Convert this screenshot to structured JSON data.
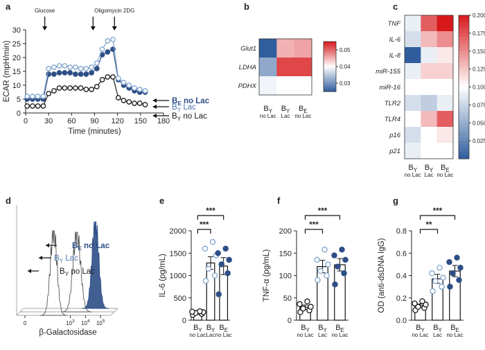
{
  "colors": {
    "navy": "#2e4e86",
    "steel": "#4f76a8",
    "light": "#7fa4cd",
    "black": "#1a1a1a",
    "heat_low": "#2f5d9e",
    "heat_mid": "#ffffff",
    "heat_high": "#d7191c"
  },
  "panel_labels": [
    "a",
    "b",
    "c",
    "d",
    "e",
    "f",
    "g"
  ],
  "chart_data": [
    {
      "id": "a",
      "type": "line",
      "xlabel": "Time (minutes)",
      "ylabel": "ECAR (mpH/min)",
      "xlim": [
        0,
        180
      ],
      "ylim": [
        0,
        30
      ],
      "xticks": [
        0,
        30,
        60,
        90,
        120,
        150,
        180
      ],
      "yticks": [
        0,
        5,
        10,
        15,
        20,
        25,
        30
      ],
      "annotations": [
        {
          "text": "Glucose",
          "x": 25
        },
        {
          "text": "Oligomycin 2DG",
          "x": 116
        }
      ],
      "arrow_times": [
        25,
        88,
        116
      ],
      "x": [
        2,
        9,
        16,
        23,
        30,
        37,
        44,
        51,
        58,
        65,
        72,
        79,
        86,
        93,
        100,
        107,
        114,
        121,
        128,
        135,
        142,
        149,
        156
      ],
      "series": [
        {
          "name": "BE no Lac",
          "label_main": "B",
          "label_sub": "E",
          "label_tail": " no Lac",
          "style": "filled-dark",
          "values": [
            5,
            5,
            5,
            5,
            14,
            14,
            14.5,
            14.5,
            14.5,
            14,
            14,
            14,
            14.5,
            16,
            21,
            22,
            23,
            12,
            10,
            9,
            8,
            7.5,
            7.5
          ]
        },
        {
          "name": "BY Lac",
          "label_main": "B",
          "label_sub": "Y",
          "label_tail": " Lac",
          "style": "open-light",
          "values": [
            6,
            6,
            6,
            6,
            16,
            16.5,
            17,
            17,
            16.5,
            16.5,
            16,
            16,
            16.5,
            18,
            23,
            26,
            26.5,
            12.5,
            11,
            10,
            9,
            8.5,
            8
          ]
        },
        {
          "name": "BY no Lac",
          "label_main": "B",
          "label_sub": "Y",
          "label_tail": " no Lac",
          "style": "open-black",
          "values": [
            2.5,
            2.5,
            2.5,
            2.5,
            7,
            8,
            9,
            9,
            9,
            9,
            9,
            8.5,
            8.5,
            9.5,
            12,
            13,
            13,
            5.5,
            4.5,
            4,
            3.5,
            3.5,
            3
          ]
        }
      ]
    },
    {
      "id": "b",
      "type": "heatmap",
      "rows": [
        "Glut1",
        "LDHA",
        "PDHX"
      ],
      "cols": [
        {
          "main": "B",
          "sub": "Y",
          "tail": "no Lac"
        },
        {
          "main": "B",
          "sub": "Y",
          "tail": "Lac"
        },
        {
          "main": "B",
          "sub": "E",
          "tail": "no Lac"
        }
      ],
      "values": [
        [
          0.025,
          0.045,
          0.046
        ],
        [
          0.032,
          0.052,
          0.052
        ],
        [
          0.039,
          0.04,
          0.04
        ]
      ],
      "vmin": 0.025,
      "vmax": 0.055,
      "colorbar_ticks": [
        0.03,
        0.04,
        0.05
      ],
      "colorbar_labels": [
        "0.03",
        "0.04",
        "0.05"
      ]
    },
    {
      "id": "c",
      "type": "heatmap",
      "rows": [
        "TNF",
        "IL-6",
        "IL-8",
        "miR-155",
        "miR-16",
        "TLR2",
        "TLR4",
        "p16",
        "p21"
      ],
      "cols": [
        {
          "main": "B",
          "sub": "Y",
          "tail": "no Lac"
        },
        {
          "main": "B",
          "sub": "Y",
          "tail": "Lac"
        },
        {
          "main": "B",
          "sub": "E",
          "tail": "no Lac"
        }
      ],
      "values": [
        [
          0.09,
          0.17,
          0.2
        ],
        [
          0.08,
          0.13,
          0.15
        ],
        [
          0.0,
          0.09,
          0.11
        ],
        [
          0.09,
          0.12,
          0.12
        ],
        [
          0.1,
          0.1,
          0.1
        ],
        [
          0.08,
          0.07,
          0.09
        ],
        [
          0.1,
          0.13,
          0.17
        ],
        [
          0.08,
          0.1,
          0.11
        ],
        [
          0.09,
          0.1,
          0.1
        ]
      ],
      "vmin": 0.0,
      "vmax": 0.2,
      "colorbar_ticks": [
        0.025,
        0.05,
        0.075,
        0.1,
        0.125,
        0.15,
        0.175,
        0.2
      ],
      "colorbar_labels": [
        "0.025",
        "0.050",
        "0.075",
        "0.100",
        "0.125",
        "0.150",
        "0.175",
        "0.200"
      ]
    },
    {
      "id": "d",
      "type": "area",
      "xlabel": "β-Galactosidase",
      "ticks": [
        {
          "main": "0",
          "sup": ""
        },
        {
          "main": "10",
          "sup": "3"
        },
        {
          "main": "10",
          "sup": "4"
        },
        {
          "main": "10",
          "sup": "5"
        }
      ],
      "tick_positions": [
        0,
        3,
        4,
        5
      ],
      "histograms": [
        {
          "name": "BE no Lac",
          "label_main": "B",
          "label_sub": "E",
          "label_tail": " no Lac",
          "peak": 4.2,
          "width": 0.22,
          "style": "filled"
        },
        {
          "name": "BY Lac",
          "label_main": "B",
          "label_sub": "Y",
          "label_tail": " Lac",
          "peak": 3.2,
          "width": 0.25,
          "style": "outline"
        },
        {
          "name": "BY no Lac",
          "label_main": "B",
          "label_sub": "Y",
          "label_tail": " no Lac",
          "peak": 1.9,
          "width": 0.22,
          "style": "outline"
        }
      ]
    },
    {
      "id": "e",
      "type": "bar",
      "ylabel": "IL-6 (pg/mL)",
      "ylim": [
        0,
        2000
      ],
      "yticks": [
        0,
        500,
        1000,
        1500,
        2000
      ],
      "categories": [
        {
          "main": "B",
          "sub": "Y",
          "tail": "no Lac"
        },
        {
          "main": "B",
          "sub": "Y",
          "tail": "Lac"
        },
        {
          "main": "B",
          "sub": "E",
          "tail": "no Lac"
        }
      ],
      "values": [
        160,
        1280,
        1210
      ],
      "errors": [
        30,
        140,
        190
      ],
      "points": [
        [
          120,
          140,
          160,
          180,
          190,
          200
        ],
        [
          880,
          1000,
          1150,
          1450,
          1600,
          1750
        ],
        [
          580,
          1050,
          1250,
          1350,
          1500,
          1600
        ]
      ],
      "point_styles": [
        "open-black",
        "open-light",
        "filled-dark"
      ],
      "significance": [
        {
          "from": 0,
          "to": 1,
          "label": "***",
          "level": 1
        },
        {
          "from": 0,
          "to": 2,
          "label": "***",
          "level": 2
        }
      ]
    },
    {
      "id": "f",
      "type": "bar",
      "ylabel": "TNF-α (pg/mL)",
      "ylim": [
        0,
        200
      ],
      "yticks": [
        0,
        50,
        100,
        150,
        200
      ],
      "categories": [
        {
          "main": "B",
          "sub": "Y",
          "tail": "no Lac"
        },
        {
          "main": "B",
          "sub": "Y",
          "tail": "Lac"
        },
        {
          "main": "B",
          "sub": "E",
          "tail": "no Lac"
        }
      ],
      "values": [
        29,
        120,
        124
      ],
      "errors": [
        5,
        14,
        14
      ],
      "points": [
        [
          18,
          22,
          26,
          30,
          36,
          42
        ],
        [
          90,
          100,
          110,
          125,
          135,
          158
        ],
        [
          80,
          105,
          120,
          135,
          145,
          158
        ]
      ],
      "point_styles": [
        "open-black",
        "open-light",
        "filled-dark"
      ],
      "significance": [
        {
          "from": 0,
          "to": 1,
          "label": "***",
          "level": 1
        },
        {
          "from": 0,
          "to": 2,
          "label": "***",
          "level": 2
        }
      ]
    },
    {
      "id": "g",
      "type": "bar",
      "ylabel": "OD (anti-dsDNA IgG)",
      "ylim": [
        0,
        0.8
      ],
      "yticks": [
        0.0,
        0.2,
        0.4,
        0.6,
        0.8
      ],
      "ytick_labels": [
        "0.0",
        "0.2",
        "0.4",
        "0.6",
        "0.8"
      ],
      "categories": [
        {
          "main": "B",
          "sub": "Y",
          "tail": "no Lac"
        },
        {
          "main": "B",
          "sub": "Y",
          "tail": "Lac"
        },
        {
          "main": "B",
          "sub": "E",
          "tail": "no Lac"
        }
      ],
      "values": [
        0.13,
        0.37,
        0.44
      ],
      "errors": [
        0.015,
        0.04,
        0.05
      ],
      "points": [
        [
          0.09,
          0.11,
          0.12,
          0.14,
          0.15,
          0.17
        ],
        [
          0.26,
          0.3,
          0.35,
          0.38,
          0.42,
          0.47
        ],
        [
          0.3,
          0.36,
          0.42,
          0.47,
          0.52,
          0.56
        ]
      ],
      "point_styles": [
        "open-black",
        "open-light",
        "filled-dark"
      ],
      "significance": [
        {
          "from": 0,
          "to": 1,
          "label": "**",
          "level": 1
        },
        {
          "from": 0,
          "to": 2,
          "label": "***",
          "level": 2
        }
      ]
    }
  ]
}
